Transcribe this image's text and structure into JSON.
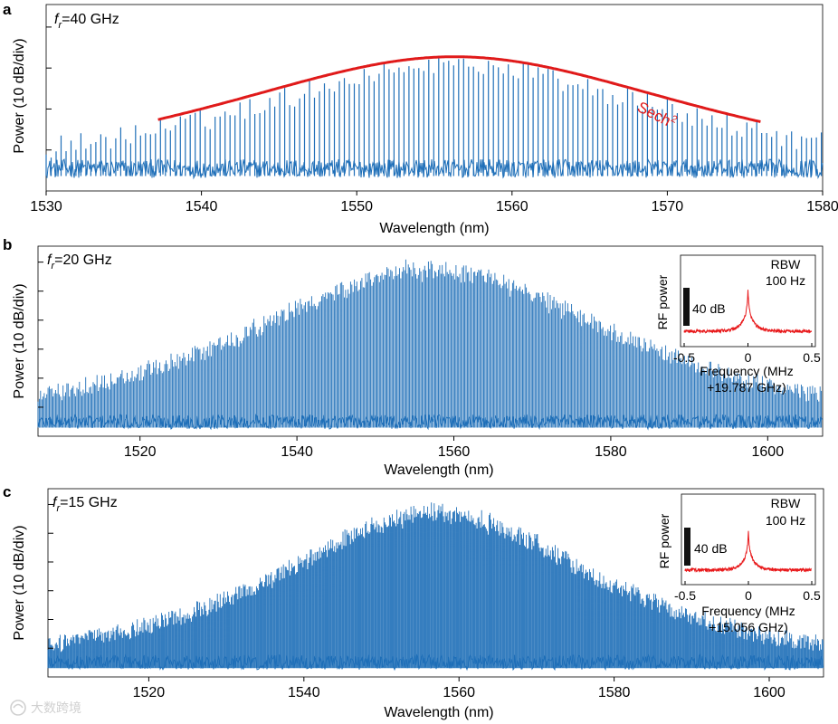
{
  "colors": {
    "spectrum": "#1f6fb8",
    "fit": "#e01a1a",
    "rf": "#e8181a",
    "axis": "#000000",
    "scalebar": "#111111"
  },
  "chart_data": [
    {
      "type": "line",
      "panel_label": "a",
      "rep_rate_symbol": "f",
      "rep_rate_sub": "r",
      "rep_rate_value": "=40 GHz",
      "xlabel": "Wavelength (nm)",
      "ylabel": "Power (10 dB/div)",
      "xlim": [
        1530,
        1580
      ],
      "xticks": [
        "1530",
        "1540",
        "1550",
        "1560",
        "1570",
        "1580"
      ],
      "ylim": [
        -45,
        5
      ],
      "ydivisions": 4,
      "series": [
        {
          "name": "comb lines",
          "kind": "comb",
          "spacing_nm": 0.32,
          "center_nm": 1556.3,
          "width_nm": 12.2,
          "peak_db": -10,
          "noise_floor_db": -39
        },
        {
          "name": "Sech²",
          "kind": "sech2_fit",
          "center_nm": 1556.3,
          "width_nm": 12.0,
          "peak_db": -9,
          "x_range": [
            1537.2,
            1576
          ]
        }
      ],
      "annotation": {
        "text": "Sech",
        "superscript": "2"
      }
    },
    {
      "type": "line",
      "panel_label": "b",
      "rep_rate_symbol": "f",
      "rep_rate_sub": "r",
      "rep_rate_value": "=20 GHz",
      "xlabel": "Wavelength (nm)",
      "ylabel": "Power (10 dB/div)",
      "xlim": [
        1507,
        1607
      ],
      "xticks": [
        "1520",
        "1540",
        "1560",
        "1580",
        "1600"
      ],
      "ylim": [
        -64,
        2
      ],
      "ydivisions": 6,
      "series": [
        {
          "name": "comb lines",
          "kind": "comb",
          "spacing_nm": 0.16,
          "center_nm": 1557,
          "width_nm": 22,
          "peak_db": -5,
          "noise_floor_db": -59
        }
      ],
      "inset": {
        "type": "line",
        "ylabel": "RF power",
        "xlabel_line1": "Frequency (MHz",
        "xlabel_line2": "+19.787 GHz)",
        "xticks": [
          "-0.5",
          "0",
          "0.5"
        ],
        "xlim": [
          -0.5,
          0.5
        ],
        "rbw_line1": "RBW",
        "rbw_line2": "100 Hz",
        "scale_label": "40 dB",
        "peak_mhz": 0,
        "peak_rel_db": 75,
        "noise_rel_db": 8
      }
    },
    {
      "type": "line",
      "panel_label": "c",
      "rep_rate_symbol": "f",
      "rep_rate_sub": "r",
      "rep_rate_value": "=15 GHz",
      "xlabel": "Wavelength (nm)",
      "ylabel": "Power (10 dB/div)",
      "xlim": [
        1507,
        1607
      ],
      "xticks": [
        "1520",
        "1540",
        "1560",
        "1580",
        "1600"
      ],
      "ylim": [
        -63,
        1
      ],
      "ydivisions": 6,
      "series": [
        {
          "name": "comb lines",
          "kind": "comb",
          "spacing_nm": 0.12,
          "center_nm": 1557,
          "width_nm": 19,
          "peak_db": -6,
          "noise_floor_db": -58
        }
      ],
      "inset": {
        "type": "line",
        "ylabel": "RF power",
        "xlabel_line1": "Frequency (MHz",
        "xlabel_line2": "+15.056 GHz)",
        "xticks": [
          "-0.5",
          "0",
          "0.5"
        ],
        "xlim": [
          -0.5,
          0.5
        ],
        "rbw_line1": "RBW",
        "rbw_line2": "100 Hz",
        "scale_label": "40 dB",
        "peak_mhz": 0,
        "peak_rel_db": 80,
        "noise_rel_db": 8
      }
    }
  ],
  "watermark_text": "大数跨境"
}
